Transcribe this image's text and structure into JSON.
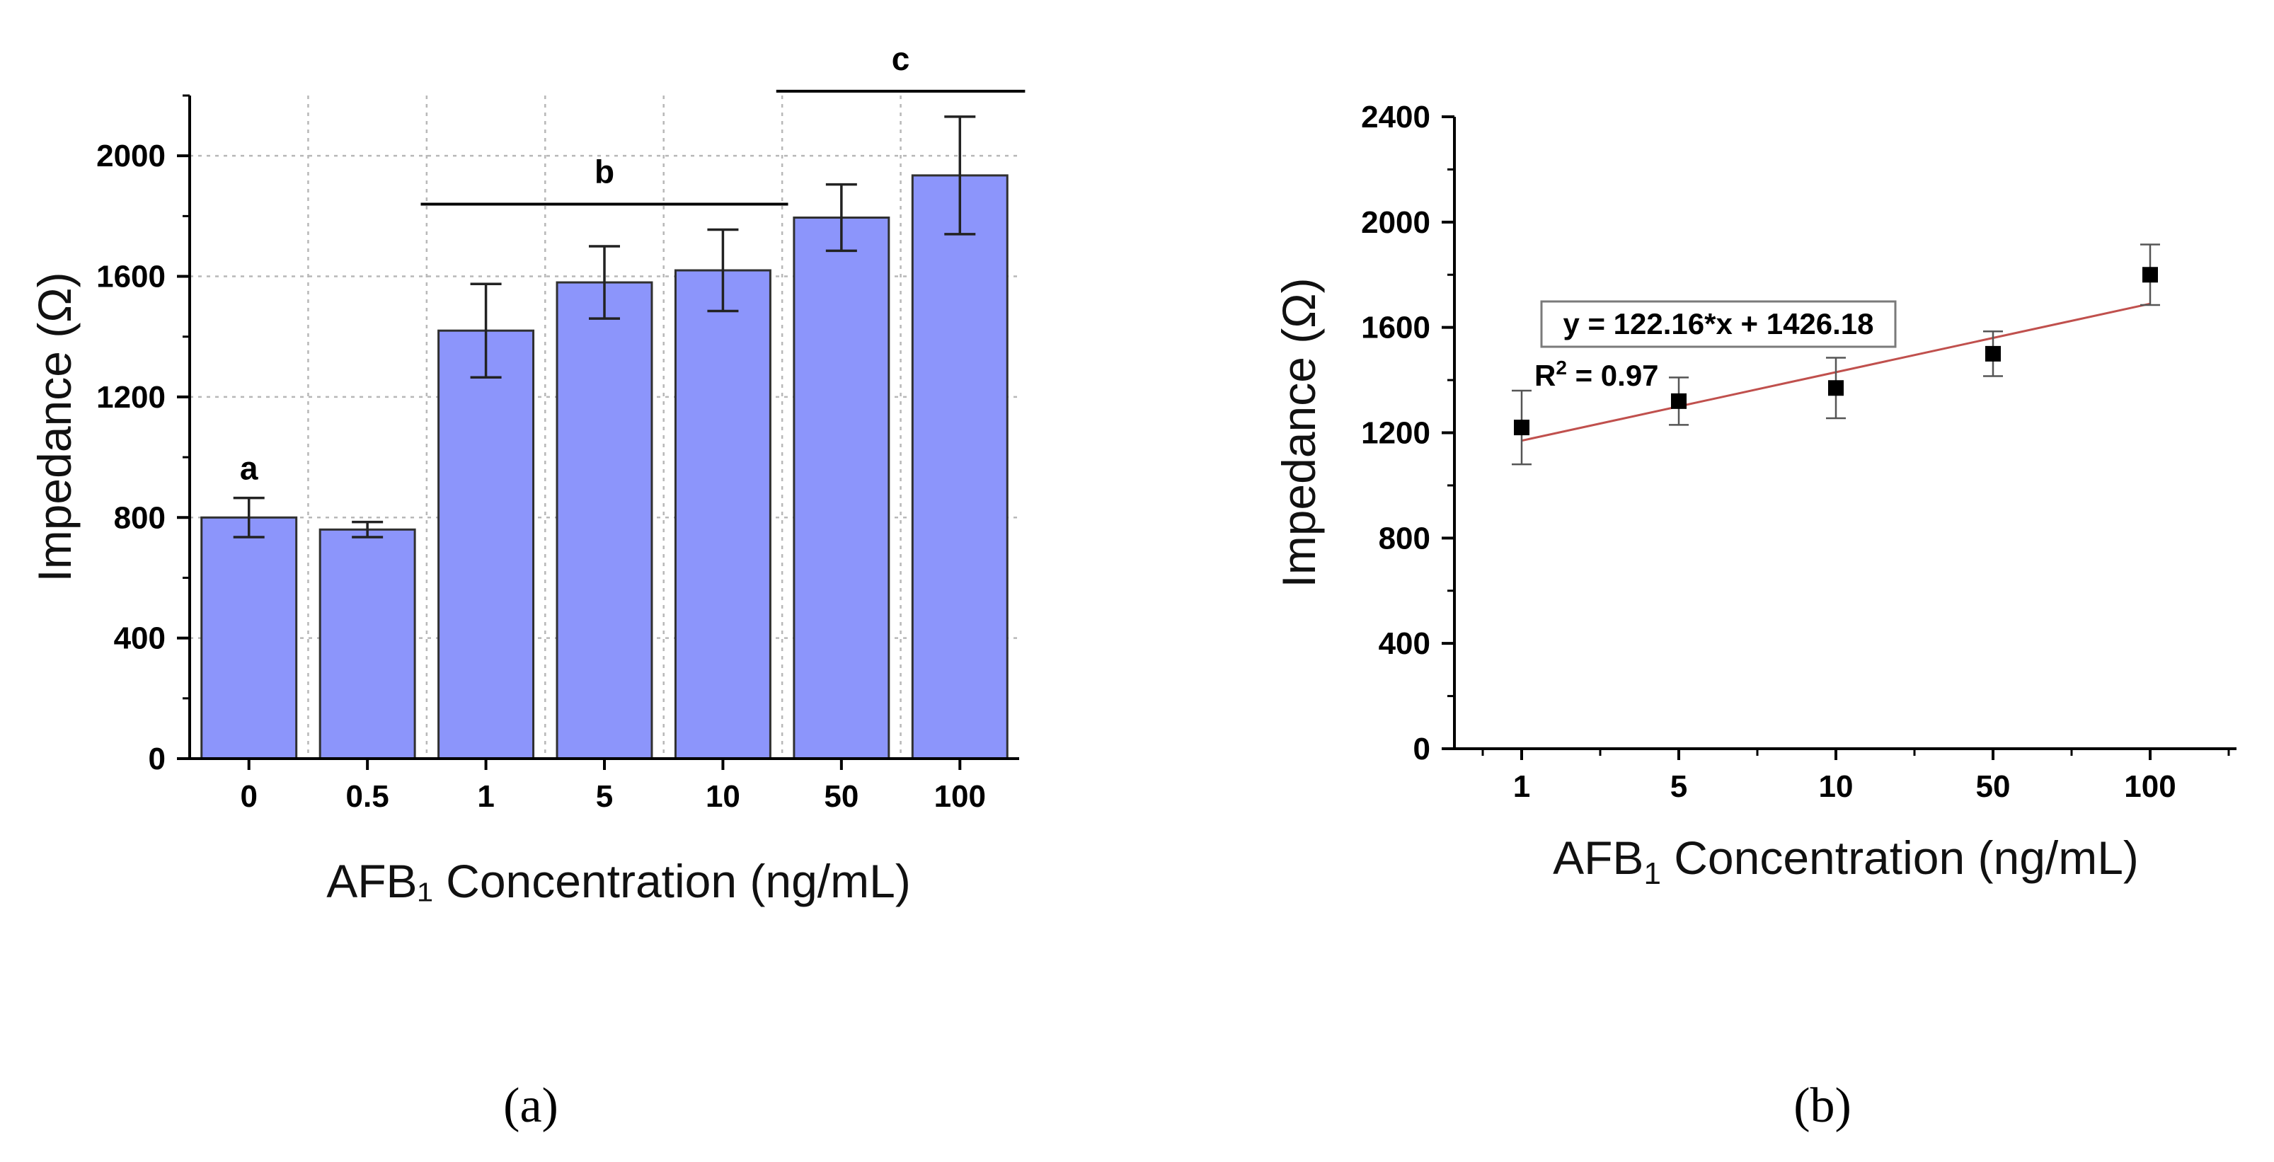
{
  "figure": {
    "panels": [
      "(a)",
      "(b)"
    ]
  },
  "chart_data": [
    {
      "type": "bar",
      "panel": "(a)",
      "title": "",
      "xlabel": "AFB₁ Concentration (ng/mL)",
      "ylabel": "Impedance (Ω)",
      "categories": [
        "0",
        "0.5",
        "1",
        "5",
        "10",
        "50",
        "100"
      ],
      "values": [
        800,
        760,
        1420,
        1580,
        1620,
        1795,
        1935
      ],
      "errors": [
        65,
        25,
        155,
        120,
        135,
        110,
        195
      ],
      "ylim": [
        0,
        2200
      ],
      "yticks": [
        0,
        400,
        800,
        1200,
        1600,
        2000
      ],
      "grid": true,
      "group_labels": [
        {
          "label": "a",
          "from": 0,
          "to": 0
        },
        {
          "label": "b",
          "from": 2,
          "to": 4
        },
        {
          "label": "c",
          "from": 5,
          "to": 6
        }
      ]
    },
    {
      "type": "scatter",
      "panel": "(b)",
      "title": "",
      "xlabel": "AFB",
      "xlabel_sub": "1",
      "xlabel_rest": " Concentration (ng/mL)",
      "ylabel": "Impedance (Ω)",
      "categories": [
        "1",
        "5",
        "10",
        "50",
        "100"
      ],
      "values": [
        1220,
        1320,
        1370,
        1500,
        1800
      ],
      "errors": [
        140,
        90,
        115,
        85,
        115
      ],
      "ylim": [
        0,
        2400
      ],
      "yticks": [
        0,
        400,
        800,
        1200,
        1600,
        2000,
        2400
      ],
      "grid": false,
      "fit": {
        "equation": "y = 122.16*x + 1426.18",
        "r2_label": "R",
        "r2_sup": "2",
        "r2_value": " = 0.97",
        "start_value": 1170,
        "end_value": 1690
      }
    }
  ]
}
